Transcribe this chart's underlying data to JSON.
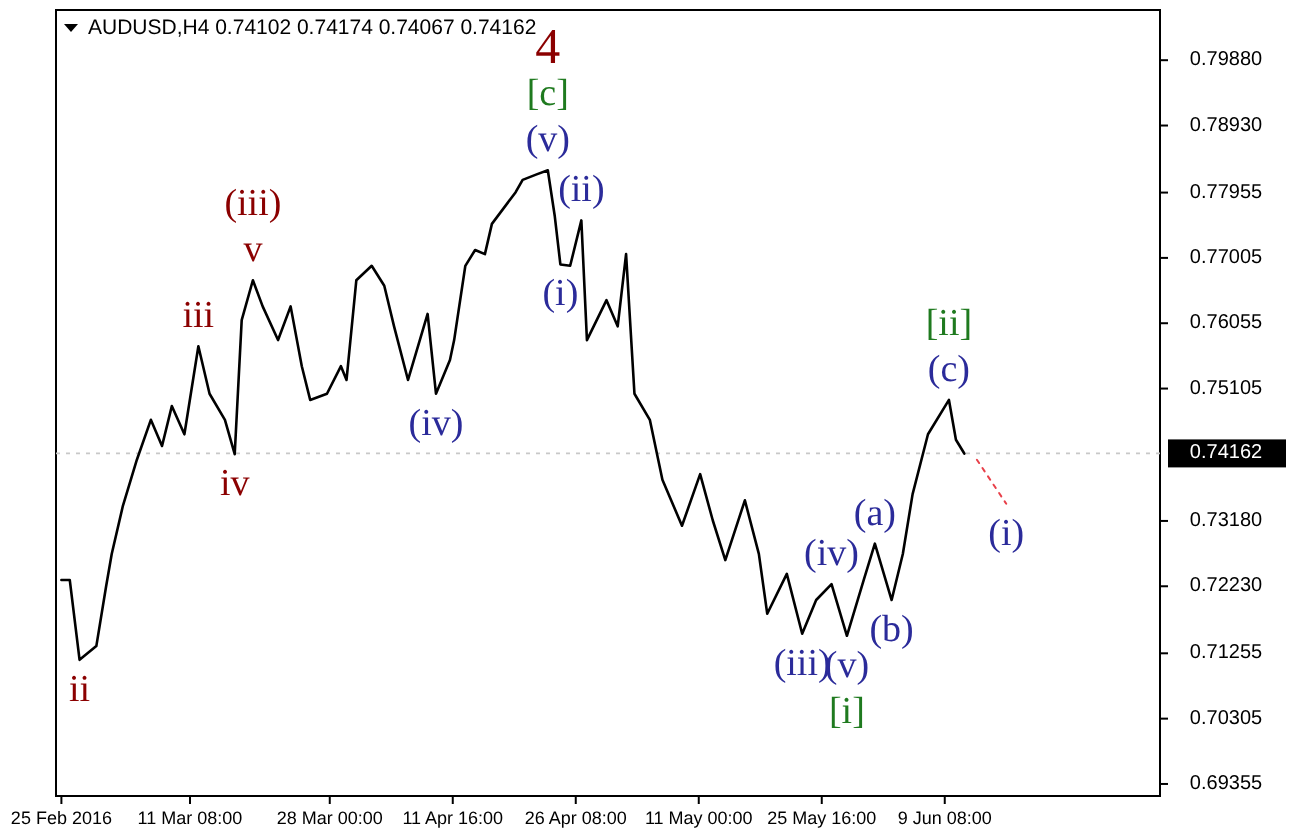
{
  "chart_data": {
    "type": "line",
    "title": "AUDUSD,H4  0.74102 0.74174 0.74067 0.74162",
    "xlim": [
      "2016-02-24T20:00",
      "2016-07-05T00:00"
    ],
    "ylim": [
      0.6918,
      0.8061
    ],
    "xticks": [
      {
        "value": "2016-02-25T00:00",
        "label": "25 Feb 2016"
      },
      {
        "value": "2016-03-11T08:00",
        "label": "11 Mar 08:00"
      },
      {
        "value": "2016-03-28T00:00",
        "label": "28 Mar 00:00"
      },
      {
        "value": "2016-04-11T16:00",
        "label": "11 Apr 16:00"
      },
      {
        "value": "2016-04-26T08:00",
        "label": "26 Apr 08:00"
      },
      {
        "value": "2016-05-11T00:00",
        "label": "11 May 00:00"
      },
      {
        "value": "2016-05-25T16:00",
        "label": "25 May 16:00"
      },
      {
        "value": "2016-06-09T08:00",
        "label": "9 Jun 08:00"
      }
    ],
    "yticks": [
      {
        "value": 0.7988,
        "label": "0.79880"
      },
      {
        "value": 0.7893,
        "label": "0.78930"
      },
      {
        "value": 0.77955,
        "label": "0.77955"
      },
      {
        "value": 0.77005,
        "label": "0.77005"
      },
      {
        "value": 0.76055,
        "label": "0.76055"
      },
      {
        "value": 0.75105,
        "label": "0.75105"
      },
      {
        "value": 0.7318,
        "label": "0.73180"
      },
      {
        "value": 0.7223,
        "label": "0.72230"
      },
      {
        "value": 0.71255,
        "label": "0.71255"
      },
      {
        "value": 0.70305,
        "label": "0.70305"
      },
      {
        "value": 0.69355,
        "label": "0.69355"
      }
    ],
    "grid": false,
    "marker": "none",
    "ref_lines": [
      {
        "axis": "y",
        "value": 0.74162,
        "label": "0.74162",
        "color": "#c8c8c8",
        "line_style": "dotted"
      }
    ],
    "series": [
      {
        "color": "#000000",
        "line_style": "solid",
        "x": [
          "2016-02-25T00:00",
          "2016-02-26T00:00",
          "2016-02-27T04:00",
          "2016-02-29T04:00",
          "2016-03-01T08:00",
          "2016-03-02T00:00",
          "2016-03-03T08:00",
          "2016-03-05T00:00",
          "2016-03-06T16:00",
          "2016-03-08T00:00",
          "2016-03-09T04:00",
          "2016-03-10T16:00",
          "2016-03-12T08:00",
          "2016-03-13T16:00",
          "2016-03-15T12:00",
          "2016-03-16T16:00",
          "2016-03-17T12:00",
          "2016-03-18T20:00",
          "2016-03-20T00:00",
          "2016-03-21T20:00",
          "2016-03-23T08:00",
          "2016-03-24T16:00",
          "2016-03-25T16:00",
          "2016-03-27T16:00",
          "2016-03-29T08:00",
          "2016-03-30T00:00",
          "2016-03-31T04:00",
          "2016-04-02T00:00",
          "2016-04-03T12:00",
          "2016-04-04T16:00",
          "2016-04-06T08:00",
          "2016-04-08T16:00",
          "2016-04-09T16:00",
          "2016-04-11T08:00",
          "2016-04-11T20:00",
          "2016-04-13T04:00",
          "2016-04-14T08:00",
          "2016-04-15T12:00",
          "2016-04-16T08:00",
          "2016-04-19T04:00",
          "2016-04-20T00:00",
          "2016-04-21T16:00",
          "2016-04-23T00:00",
          "2016-04-23T20:00",
          "2016-04-24T12:00",
          "2016-04-25T16:00",
          "2016-04-27T00:00",
          "2016-04-27T16:00",
          "2016-04-30T00:00",
          "2016-05-01T08:00",
          "2016-05-02T08:00",
          "2016-05-03T08:00",
          "2016-05-05T04:00",
          "2016-05-06T16:00",
          "2016-05-09T00:00",
          "2016-05-11T04:00",
          "2016-05-12T16:00",
          "2016-05-14T04:00",
          "2016-05-16T12:00",
          "2016-05-18T04:00",
          "2016-05-19T04:00",
          "2016-05-21T12:00",
          "2016-05-23T08:00",
          "2016-05-25T00:00",
          "2016-05-26T20:00",
          "2016-05-28T16:00",
          "2016-05-30T16:00",
          "2016-06-01T00:00",
          "2016-06-03T00:00",
          "2016-06-04T08:00",
          "2016-06-05T12:00",
          "2016-06-07T08:00",
          "2016-06-09T20:00",
          "2016-06-10T16:00",
          "2016-06-11T16:00"
        ],
        "values": [
          0.7232,
          0.7232,
          0.7116,
          0.7136,
          0.7223,
          0.727,
          0.734,
          0.7407,
          0.7465,
          0.7427,
          0.7485,
          0.7444,
          0.7572,
          0.7503,
          0.7465,
          0.7415,
          0.761,
          0.7668,
          0.763,
          0.7581,
          0.763,
          0.7543,
          0.7494,
          0.7503,
          0.7543,
          0.7523,
          0.7668,
          0.7689,
          0.766,
          0.7601,
          0.7523,
          0.7619,
          0.7503,
          0.7552,
          0.7581,
          0.7689,
          0.7712,
          0.7706,
          0.775,
          0.7796,
          0.7814,
          0.7822,
          0.7828,
          0.7761,
          0.7691,
          0.7689,
          0.7755,
          0.7581,
          0.7639,
          0.7601,
          0.7706,
          0.7503,
          0.7465,
          0.7378,
          0.7311,
          0.7386,
          0.7319,
          0.7261,
          0.7348,
          0.727,
          0.7183,
          0.7241,
          0.7154,
          0.7203,
          0.7226,
          0.7151,
          0.7232,
          0.7285,
          0.7203,
          0.727,
          0.7357,
          0.7444,
          0.7494,
          0.7436,
          0.7416
        ]
      },
      {
        "color": "#e8404a",
        "line_style": "dotted",
        "x": [
          "2016-06-13T04:00",
          "2016-06-16T16:00"
        ],
        "values": [
          0.7407,
          0.7343
        ]
      }
    ],
    "annotations": [
      {
        "text": "4",
        "x": "2016-04-23T00:00",
        "y": 0.7828
      },
      {
        "text": "[c]",
        "x": "2016-04-23T00:00",
        "y": 0.7828
      },
      {
        "text": "(v)",
        "x": "2016-04-23T00:00",
        "y": 0.7828
      },
      {
        "text": "(ii)",
        "x": "2016-04-27T00:00",
        "y": 0.7755
      },
      {
        "text": "(i)",
        "x": "2016-04-24T12:00",
        "y": 0.7691
      },
      {
        "text": "(iii)",
        "x": "2016-03-18T20:00",
        "y": 0.7668
      },
      {
        "text": "v",
        "x": "2016-03-18T20:00",
        "y": 0.7668
      },
      {
        "text": "iii",
        "x": "2016-03-12T08:00",
        "y": 0.7572
      },
      {
        "text": "iv",
        "x": "2016-03-16T16:00",
        "y": 0.7415
      },
      {
        "text": "ii",
        "x": "2016-02-27T04:00",
        "y": 0.7116
      },
      {
        "text": "(iv)",
        "x": "2016-04-09T16:00",
        "y": 0.7503
      },
      {
        "text": "[ii]",
        "x": "2016-06-09T20:00",
        "y": 0.7494
      },
      {
        "text": "(c)",
        "x": "2016-06-09T20:00",
        "y": 0.7494
      },
      {
        "text": "(i)",
        "x": "2016-06-16T16:00",
        "y": 0.7343
      },
      {
        "text": "(a)",
        "x": "2016-06-01T00:00",
        "y": 0.7285
      },
      {
        "text": "(iv)",
        "x": "2016-05-26T20:00",
        "y": 0.7226
      },
      {
        "text": "(b)",
        "x": "2016-06-03T00:00",
        "y": 0.7203
      },
      {
        "text": "(iii)",
        "x": "2016-05-23T08:00",
        "y": 0.7154
      },
      {
        "text": "(v)",
        "x": "2016-05-28T16:00",
        "y": 0.7151
      },
      {
        "text": "[i]",
        "x": "2016-05-28T16:00",
        "y": 0.7151
      }
    ]
  }
}
